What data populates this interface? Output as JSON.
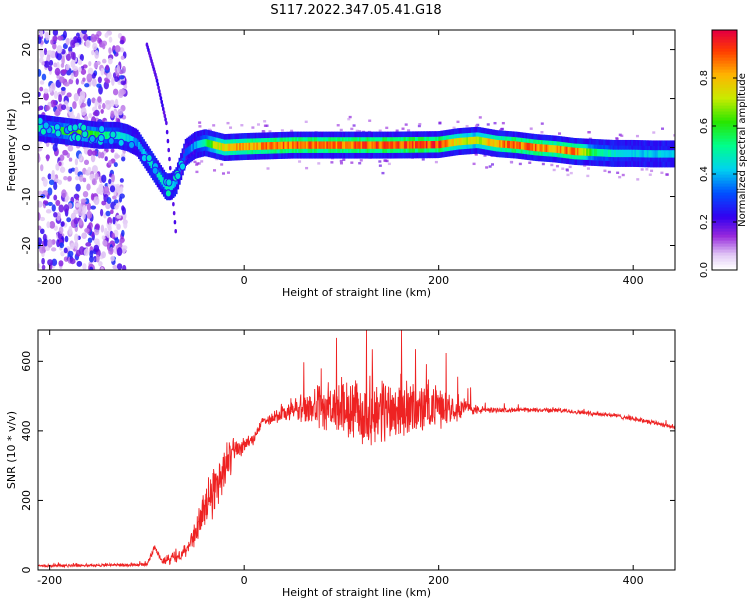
{
  "figure": {
    "title": "S117.2022.347.05.41.G18"
  },
  "chart_data": [
    {
      "type": "heatmap",
      "xlabel": "Height of straight line (km)",
      "ylabel": "Frequency (Hz)",
      "xlim": [
        -212,
        443
      ],
      "ylim": [
        -25,
        24
      ],
      "xticks": [
        -200,
        0,
        200,
        400
      ],
      "yticks": [
        -20,
        -10,
        0,
        10,
        20
      ],
      "grid": false,
      "colormap": "rainbow (white → violet → blue → cyan → green → yellow → red)",
      "colorbar": {
        "label": "Normalized spectral amplitude",
        "range": [
          0,
          1
        ],
        "ticks": [
          0.0,
          0.2,
          0.4,
          0.6,
          0.8
        ]
      },
      "ridge": {
        "x": [
          -210,
          -190,
          -170,
          -150,
          -130,
          -120,
          -110,
          -100,
          -90,
          -80,
          -75,
          -70,
          -65,
          -60,
          -50,
          -40,
          -30,
          -20,
          0,
          50,
          100,
          150,
          200,
          220,
          240,
          260,
          280,
          300,
          320,
          340,
          360,
          380,
          400,
          420,
          443
        ],
        "y": [
          4,
          3.5,
          3,
          2.5,
          2.5,
          2,
          1,
          -2,
          -5,
          -8,
          -8,
          -7,
          -4,
          -1,
          0.5,
          1,
          0.5,
          0,
          0.2,
          0.5,
          0.5,
          0.5,
          0.6,
          1.2,
          1.5,
          0.8,
          0.5,
          0,
          -0.3,
          -0.8,
          -1,
          -1.2,
          -1.2,
          -1.3,
          -1.3
        ]
      },
      "ridge_amplitude": [
        0.5,
        0.6,
        0.7,
        0.6,
        0.5,
        0.45,
        0.4,
        0.45,
        0.5,
        0.5,
        0.5,
        0.4,
        0.35,
        0.35,
        0.4,
        0.55,
        0.75,
        0.85,
        0.9,
        0.95,
        0.95,
        0.98,
        1.0,
        0.8,
        0.75,
        0.9,
        0.95,
        0.95,
        0.9,
        0.95,
        0.6,
        0.5,
        0.45,
        0.45,
        0.45
      ],
      "secondary_trace": {
        "x": [
          -100,
          -90,
          -80,
          -70
        ],
        "y": [
          21,
          14,
          5,
          -18
        ]
      },
      "noise_region_x": [
        -212,
        -122
      ]
    },
    {
      "type": "line",
      "xlabel": "Height of straight line (km)",
      "ylabel": "SNR (10 * v/v)",
      "xlim": [
        -212,
        443
      ],
      "ylim": [
        0,
        690
      ],
      "xticks": [
        -200,
        0,
        200,
        400
      ],
      "yticks": [
        0,
        200,
        400,
        600
      ],
      "grid": false,
      "color": "#ee2222",
      "series": [
        {
          "x": [
            -212,
            -150,
            -100,
            -92,
            -85,
            -70,
            -60,
            -50,
            -40,
            -30,
            -20,
            -10,
            0,
            10,
            20,
            30,
            50,
            80,
            100,
            120,
            140,
            160,
            180,
            200,
            220,
            240,
            260,
            280,
            300,
            320,
            340,
            360,
            380,
            400,
            420,
            443
          ],
          "y": [
            12,
            14,
            15,
            70,
            25,
            35,
            60,
            110,
            180,
            240,
            300,
            340,
            360,
            380,
            430,
            440,
            460,
            470,
            460,
            450,
            460,
            465,
            460,
            470,
            470,
            460,
            460,
            460,
            460,
            460,
            455,
            450,
            445,
            435,
            425,
            410
          ],
          "noise": [
            5,
            5,
            5,
            15,
            12,
            25,
            35,
            50,
            70,
            90,
            80,
            50,
            30,
            20,
            15,
            25,
            40,
            80,
            100,
            110,
            120,
            110,
            90,
            70,
            45,
            15,
            8,
            8,
            8,
            8,
            8,
            8,
            8,
            8,
            8,
            8
          ]
        }
      ]
    }
  ]
}
